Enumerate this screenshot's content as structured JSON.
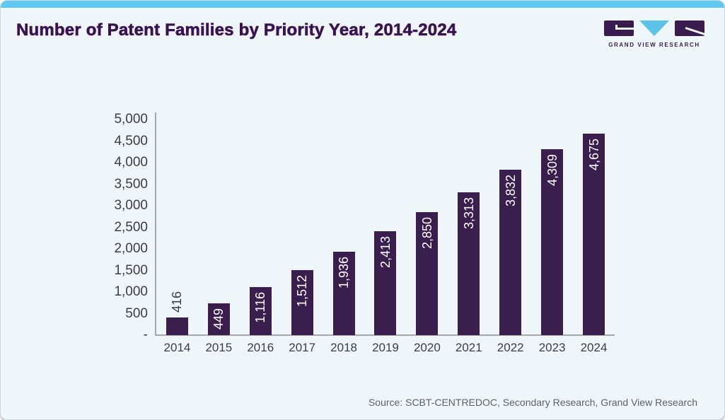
{
  "page": {
    "title": "Number of Patent Families by Priority Year, 2014-2024",
    "source": "Source: SCBT-CENTREDOC, Secondary Research, Grand View Research"
  },
  "logo": {
    "text": "GRAND VIEW RESEARCH"
  },
  "colors": {
    "accent_blue": "#5ec8f0",
    "bar_purple": "#3a1e4e",
    "title_purple": "#3a1254",
    "logo_dark": "#3a1b4f",
    "logo_blue": "#5bc3ea",
    "axis_line": "#a8a8a8",
    "axis_text": "#3d3c43",
    "bar_label_inside": "#ffffff",
    "source_text": "#5d6166",
    "card_background": "#eff6fa"
  },
  "chart_data": {
    "type": "bar",
    "title": "Number of Patent Families by Priority Year, 2014-2024",
    "categories": [
      "2014",
      "2015",
      "2016",
      "2017",
      "2018",
      "2019",
      "2020",
      "2021",
      "2022",
      "2023",
      "2024"
    ],
    "values": [
      416,
      449,
      1116,
      1512,
      1936,
      2413,
      2850,
      3313,
      3832,
      4309,
      4675
    ],
    "value_labels": [
      "416",
      "449",
      "1,116",
      "1,512",
      "1,936",
      "2,413",
      "2,850",
      "3,313",
      "3,832",
      "4,309",
      "4,675"
    ],
    "label_positions": [
      "outside",
      "inside",
      "inside",
      "inside",
      "inside",
      "inside",
      "inside",
      "inside",
      "inside",
      "inside",
      "inside"
    ],
    "xlabel": "",
    "ylabel": "",
    "ylim": [
      0,
      5000
    ],
    "ytick_step": 500,
    "ytick_labels_top_to_bottom": [
      "5,000",
      "4,500",
      "4,000",
      "3,500",
      "3,000",
      "2,500",
      "2,000",
      "1,500",
      "1,000",
      "500",
      "-"
    ],
    "grid": false,
    "legend": "none",
    "bar_color": "#3a1e4e"
  }
}
